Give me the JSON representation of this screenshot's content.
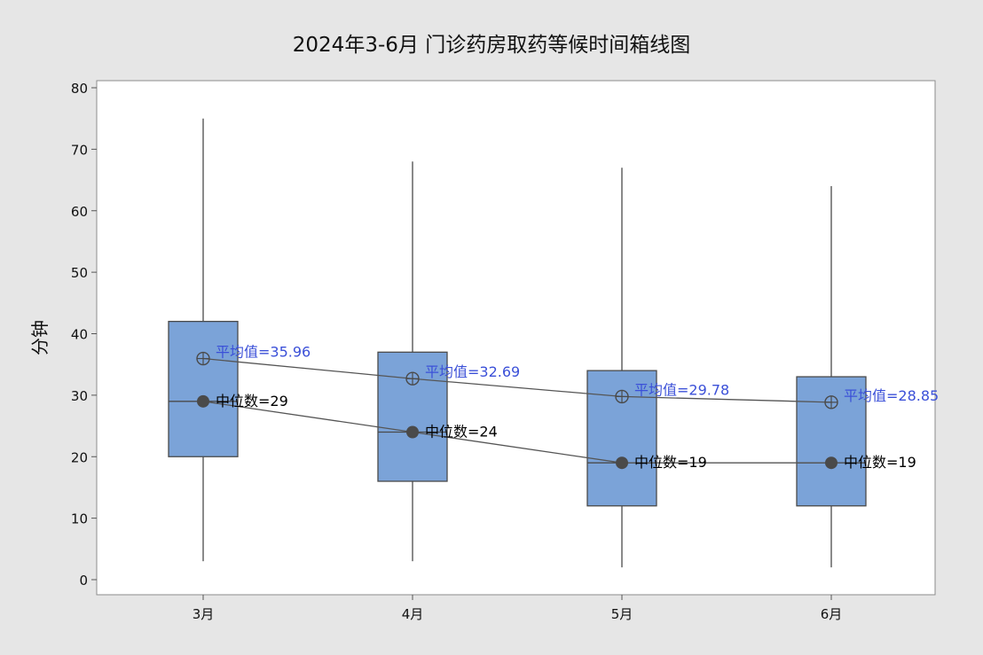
{
  "chart_data": {
    "type": "box",
    "title": "2024年3-6月 门诊药房取药等候时间箱线图",
    "xlabel": "",
    "ylabel": "分钟",
    "ylim": [
      0,
      80
    ],
    "yticks": [
      0,
      10,
      20,
      30,
      40,
      50,
      60,
      70,
      80
    ],
    "categories": [
      "3月",
      "4月",
      "5月",
      "6月"
    ],
    "boxes": [
      {
        "category": "3月",
        "min": 3,
        "q1": 20,
        "median": 29,
        "q3": 42,
        "max": 75,
        "mean": 35.96,
        "mean_label": "平均值=35.96",
        "median_label": "中位数=29"
      },
      {
        "category": "4月",
        "min": 3,
        "q1": 16,
        "median": 24,
        "q3": 37,
        "max": 68,
        "mean": 32.69,
        "mean_label": "平均值=32.69",
        "median_label": "中位数=24"
      },
      {
        "category": "5月",
        "min": 2,
        "q1": 12,
        "median": 19,
        "q3": 34,
        "max": 67,
        "mean": 29.78,
        "mean_label": "平均值=29.78",
        "median_label": "中位数=19"
      },
      {
        "category": "6月",
        "min": 2,
        "q1": 12,
        "median": 19,
        "q3": 33,
        "max": 64,
        "mean": 28.85,
        "mean_label": "平均值=28.85",
        "median_label": "中位数=19"
      }
    ],
    "grid": false,
    "colors": {
      "box_fill": "#7ba3d8",
      "box_stroke": "#4a4a4a",
      "mean_label": "#3b50d8",
      "median_label": "#000000",
      "background": "#e6e6e6",
      "plot_background": "#ffffff"
    }
  }
}
